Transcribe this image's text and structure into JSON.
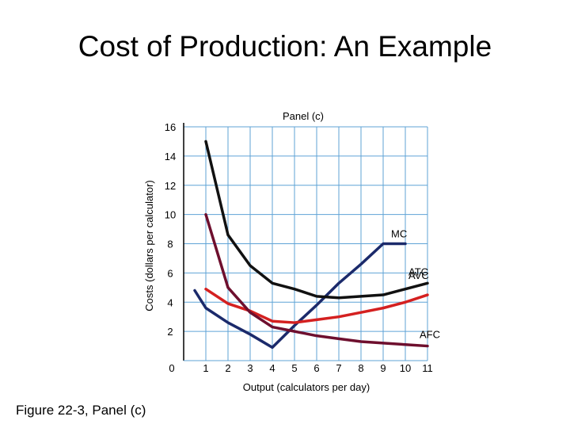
{
  "slide": {
    "title": "Cost of Production: An Example",
    "caption": "Figure 22-3, Panel (c)"
  },
  "chart_data": {
    "type": "line",
    "title": "Panel (c)",
    "xlabel": "Output (calculators per day)",
    "ylabel": "Costs (dollars per calculator)",
    "xlim": [
      0,
      11
    ],
    "ylim": [
      0,
      16
    ],
    "x_ticks": [
      "0",
      "1",
      "2",
      "3",
      "4",
      "5",
      "6",
      "7",
      "8",
      "9",
      "10",
      "11"
    ],
    "y_ticks": [
      "2",
      "4",
      "6",
      "8",
      "10",
      "12",
      "14",
      "16"
    ],
    "grid": true,
    "colors": {
      "grid": "#5fa3d6",
      "axis": "#000000",
      "MC": "#1b2a6b",
      "ATC": "#111111",
      "AVC": "#d42020",
      "AFC": "#6e0f2e"
    },
    "series": [
      {
        "name": "MC",
        "x": [
          0.5,
          1,
          2,
          3,
          4,
          5,
          6,
          7,
          8,
          9,
          10
        ],
        "y": [
          4.8,
          3.6,
          2.6,
          1.8,
          0.9,
          2.4,
          3.8,
          5.3,
          6.6,
          8.0,
          8.0
        ]
      },
      {
        "name": "ATC",
        "x": [
          1,
          2,
          3,
          4,
          5,
          6,
          7,
          8,
          9,
          10,
          11
        ],
        "y": [
          15.0,
          8.6,
          6.5,
          5.3,
          4.9,
          4.4,
          4.3,
          4.4,
          4.5,
          4.9,
          5.3
        ]
      },
      {
        "name": "AVC",
        "x": [
          1,
          2,
          3,
          4,
          5,
          6,
          7,
          8,
          9,
          10,
          11
        ],
        "y": [
          4.9,
          3.9,
          3.4,
          2.7,
          2.6,
          2.8,
          3.0,
          3.3,
          3.6,
          4.0,
          4.5
        ]
      },
      {
        "name": "AFC",
        "x": [
          1,
          2,
          3,
          4,
          5,
          6,
          7,
          8,
          9,
          10,
          11
        ],
        "y": [
          10.0,
          5.0,
          3.3,
          2.3,
          2.0,
          1.7,
          1.5,
          1.3,
          1.2,
          1.1,
          1.0
        ]
      }
    ]
  }
}
